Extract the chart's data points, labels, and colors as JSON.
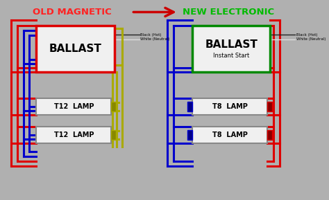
{
  "bg_color": "#b0b0b0",
  "diagram_bg": "#b8b8b8",
  "title_old": "OLD MAGNETIC",
  "title_new": "NEW ELECTRONIC",
  "title_old_color": "#ff2222",
  "title_new_color": "#00bb00",
  "arrow_color": "#cc0000",
  "ballast_label": "BALLAST",
  "ballast_new_label": "BALLAST",
  "ballast_new_sublabel": "Instant Start",
  "lamp1_label": "T12  LAMP",
  "lamp2_label": "T12  LAMP",
  "lamp3_label": "T8  LAMP",
  "lamp4_label": "T8  LAMP",
  "wire_red": "#dd0000",
  "wire_blue": "#0000cc",
  "wire_yellow": "#aaaa00",
  "wire_black": "#222222",
  "wire_white": "#dddddd",
  "ballast_old_border": "#dd0000",
  "ballast_new_border": "#008800",
  "lamp_border": "#888888",
  "label_color": "#000000",
  "box_fill": "#f0f0f0",
  "black_hot_label": "Black (Hot)",
  "white_neutral_label": "White (Neutral)"
}
